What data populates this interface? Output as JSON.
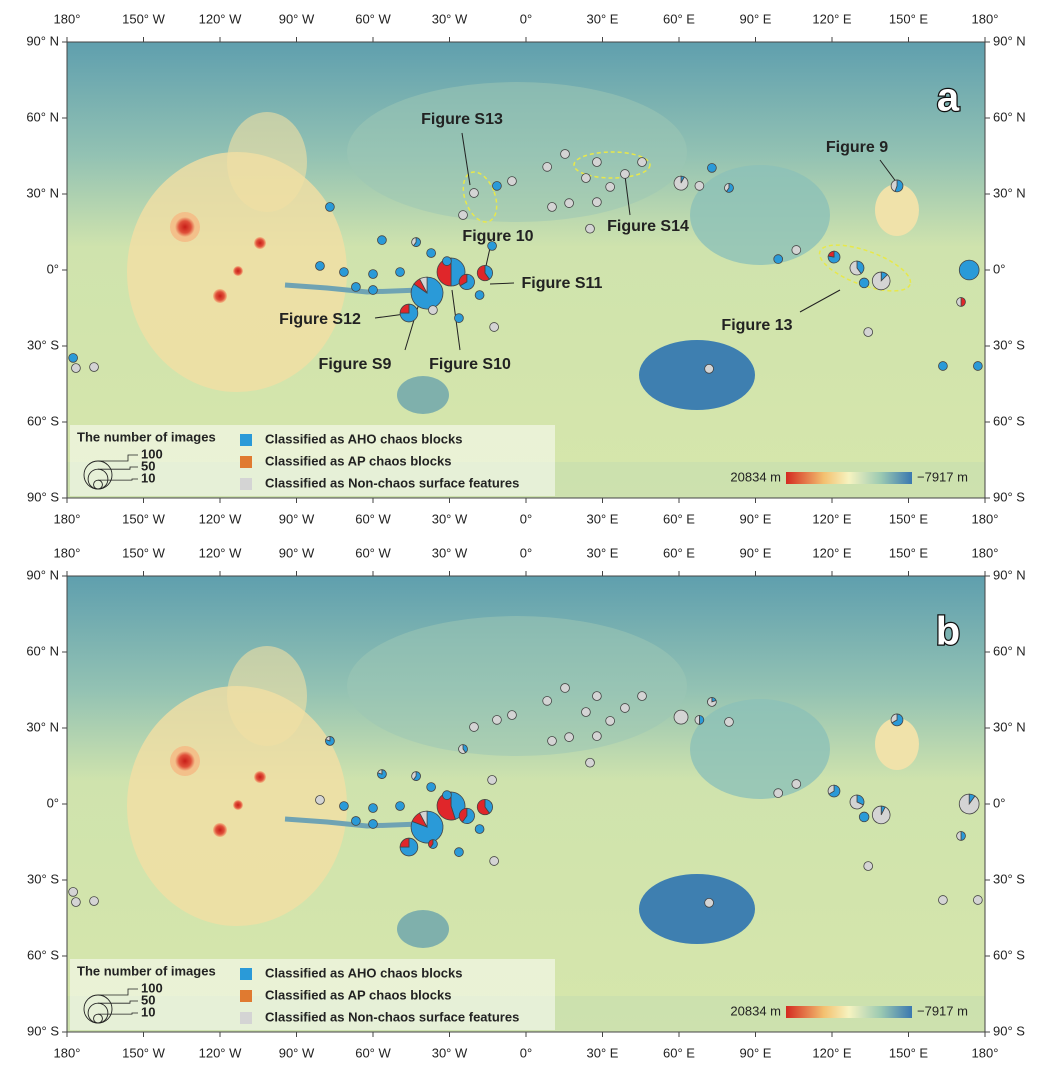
{
  "chart_data": {
    "type": "map",
    "xlim": [
      -180,
      180
    ],
    "ylim": [
      -90,
      90
    ],
    "xticks": [
      {
        "value": -180,
        "label": "180°"
      },
      {
        "value": -150,
        "label": "150° W"
      },
      {
        "value": -120,
        "label": "120° W"
      },
      {
        "value": -90,
        "label": "90° W"
      },
      {
        "value": -60,
        "label": "60° W"
      },
      {
        "value": -30,
        "label": "30° W"
      },
      {
        "value": 0,
        "label": "0°"
      },
      {
        "value": 30,
        "label": "30° E"
      },
      {
        "value": 60,
        "label": "60° E"
      },
      {
        "value": 90,
        "label": "90° E"
      },
      {
        "value": 120,
        "label": "120° E"
      },
      {
        "value": 150,
        "label": "150° E"
      },
      {
        "value": 180,
        "label": "180°"
      }
    ],
    "yticks": [
      {
        "value": 90,
        "label": "90° N"
      },
      {
        "value": 60,
        "label": "60° N"
      },
      {
        "value": 30,
        "label": "30° N"
      },
      {
        "value": 0,
        "label": "0°"
      },
      {
        "value": -30,
        "label": "30° S"
      },
      {
        "value": -60,
        "label": "60° S"
      },
      {
        "value": -90,
        "label": "90° S"
      }
    ],
    "panels": [
      {
        "label": "a",
        "annotations": [
          "Figure S13",
          "Figure 9",
          "Figure 10",
          "Figure S11",
          "Figure S14",
          "Figure 13",
          "Figure S12",
          "Figure S9",
          "Figure S10"
        ]
      },
      {
        "label": "b"
      }
    ],
    "size_title": "The number of images",
    "size_ticks": [
      100,
      50,
      10
    ],
    "classes": [
      {
        "name": "Classified as AHO chaos blocks",
        "color": "#2a9ad8"
      },
      {
        "name": "Classified as AP chaos blocks",
        "color": "#e0262a",
        "swatch": "#e07a30"
      },
      {
        "name": "Classified as Non-chaos surface features",
        "color": "#d4d4d4"
      }
    ],
    "colorbar": {
      "max": {
        "value": 20834,
        "label": "20834 m"
      },
      "min": {
        "value": -7917,
        "label": "−7917 m"
      }
    },
    "sites": [
      {
        "lon": -38.8,
        "lat": -9.1,
        "a": [
          110,
          10,
          10
        ],
        "b": [
          105,
          15,
          10
        ]
      },
      {
        "lon": -29.4,
        "lat": -0.8,
        "a": [
          50,
          50,
          0
        ],
        "b": [
          45,
          55,
          0
        ]
      },
      {
        "lon": -45.9,
        "lat": -17,
        "a": [
          30,
          10,
          0
        ],
        "b": [
          30,
          10,
          0
        ]
      },
      {
        "lon": -16.1,
        "lat": -1.2,
        "a": [
          12,
          18,
          0
        ],
        "b": [
          12,
          18,
          0
        ]
      },
      {
        "lon": -23.2,
        "lat": -4.7,
        "a": [
          20,
          10,
          0
        ],
        "b": [
          18,
          12,
          0
        ]
      },
      {
        "lon": 173.8,
        "lat": 0,
        "a": [
          50,
          0,
          0
        ],
        "b": [
          5,
          0,
          45
        ]
      },
      {
        "lon": 139.3,
        "lat": -4.3,
        "a": [
          5,
          0,
          35
        ],
        "b": [
          3,
          0,
          37
        ]
      },
      {
        "lon": 129.8,
        "lat": 0.8,
        "a": [
          10,
          0,
          15
        ],
        "b": [
          8,
          0,
          17
        ]
      },
      {
        "lon": 120.8,
        "lat": 5.1,
        "a": [
          14,
          4,
          0
        ],
        "b": [
          12,
          0,
          6
        ]
      },
      {
        "lon": 132.6,
        "lat": -5.1,
        "a": [
          12,
          0,
          0
        ],
        "b": [
          12,
          0,
          0
        ]
      },
      {
        "lon": 145.5,
        "lat": 33.2,
        "a": [
          10,
          0,
          8
        ],
        "b": [
          12,
          0,
          6
        ]
      },
      {
        "lon": 60.8,
        "lat": 34.3,
        "a": [
          2,
          0,
          23
        ],
        "b": [
          0,
          0,
          25
        ]
      },
      {
        "lon": 98.9,
        "lat": 4.3,
        "a": [
          10,
          0,
          0
        ],
        "b": [
          0,
          0,
          10
        ]
      },
      {
        "lon": 71.8,
        "lat": -39,
        "a": [
          0,
          0,
          10
        ],
        "b": [
          0,
          0,
          10
        ]
      },
      {
        "lon": 170.6,
        "lat": -12.6,
        "a": [
          0,
          5,
          5
        ],
        "b": [
          5,
          0,
          5
        ]
      },
      {
        "lon": 163.5,
        "lat": -37.9,
        "a": [
          10,
          0,
          0
        ],
        "b": [
          0,
          0,
          10
        ]
      },
      {
        "lon": 177.2,
        "lat": -37.9,
        "a": [
          10,
          0,
          0
        ],
        "b": [
          0,
          0,
          10
        ]
      },
      {
        "lon": -177.6,
        "lat": -34.7,
        "a": [
          10,
          0,
          0
        ],
        "b": [
          0,
          0,
          10
        ]
      },
      {
        "lon": -176.5,
        "lat": -38.7,
        "a": [
          0,
          0,
          10
        ],
        "b": [
          0,
          0,
          10
        ]
      },
      {
        "lon": -169.4,
        "lat": -38.3,
        "a": [
          0,
          0,
          10
        ],
        "b": [
          0,
          0,
          10
        ]
      },
      {
        "lon": -76.9,
        "lat": 24.9,
        "a": [
          10,
          0,
          0
        ],
        "b": [
          8,
          0,
          2
        ]
      },
      {
        "lon": -56.5,
        "lat": 11.8,
        "a": [
          10,
          0,
          0
        ],
        "b": [
          8,
          0,
          2
        ]
      },
      {
        "lon": -80.8,
        "lat": 1.6,
        "a": [
          10,
          0,
          0
        ],
        "b": [
          0,
          0,
          10
        ]
      },
      {
        "lon": -71.4,
        "lat": -0.8,
        "a": [
          10,
          0,
          0
        ],
        "b": [
          10,
          0,
          0
        ]
      },
      {
        "lon": -60,
        "lat": -1.6,
        "a": [
          10,
          0,
          0
        ],
        "b": [
          10,
          0,
          0
        ]
      },
      {
        "lon": -60,
        "lat": -7.9,
        "a": [
          10,
          0,
          0
        ],
        "b": [
          10,
          0,
          0
        ]
      },
      {
        "lon": -66.7,
        "lat": -6.7,
        "a": [
          10,
          0,
          0
        ],
        "b": [
          10,
          0,
          0
        ]
      },
      {
        "lon": -49.4,
        "lat": -0.8,
        "a": [
          10,
          0,
          0
        ],
        "b": [
          10,
          0,
          0
        ]
      },
      {
        "lon": -43.1,
        "lat": 11,
        "a": [
          6,
          0,
          4
        ],
        "b": [
          6,
          0,
          4
        ]
      },
      {
        "lon": -37.2,
        "lat": 6.7,
        "a": [
          10,
          0,
          0
        ],
        "b": [
          10,
          0,
          0
        ]
      },
      {
        "lon": -31,
        "lat": 3.5,
        "a": [
          10,
          0,
          0
        ],
        "b": [
          10,
          0,
          0
        ]
      },
      {
        "lon": -13.3,
        "lat": 9.5,
        "a": [
          10,
          0,
          0
        ],
        "b": [
          0,
          0,
          10
        ]
      },
      {
        "lon": -11.4,
        "lat": 33.2,
        "a": [
          10,
          0,
          0
        ],
        "b": [
          0,
          0,
          10
        ]
      },
      {
        "lon": -24.7,
        "lat": 21.7,
        "a": [
          0,
          0,
          10
        ],
        "b": [
          4,
          0,
          6
        ]
      },
      {
        "lon": -20.4,
        "lat": 30.4,
        "a": [
          0,
          0,
          10
        ],
        "b": [
          0,
          0,
          10
        ]
      },
      {
        "lon": -5.5,
        "lat": 35.1,
        "a": [
          0,
          0,
          10
        ],
        "b": [
          0,
          0,
          10
        ]
      },
      {
        "lon": 8.3,
        "lat": 40.7,
        "a": [
          0,
          0,
          10
        ],
        "b": [
          0,
          0,
          10
        ]
      },
      {
        "lon": 15.3,
        "lat": 45.8,
        "a": [
          0,
          0,
          10
        ],
        "b": [
          0,
          0,
          10
        ]
      },
      {
        "lon": 10.2,
        "lat": 24.9,
        "a": [
          0,
          0,
          10
        ],
        "b": [
          0,
          0,
          10
        ]
      },
      {
        "lon": 16.9,
        "lat": 26.4,
        "a": [
          0,
          0,
          10
        ],
        "b": [
          0,
          0,
          10
        ]
      },
      {
        "lon": 23.5,
        "lat": 36.3,
        "a": [
          0,
          0,
          10
        ],
        "b": [
          0,
          0,
          10
        ]
      },
      {
        "lon": 27.8,
        "lat": 42.6,
        "a": [
          0,
          0,
          10
        ],
        "b": [
          0,
          0,
          10
        ]
      },
      {
        "lon": 33,
        "lat": 32.8,
        "a": [
          0,
          0,
          10
        ],
        "b": [
          0,
          0,
          10
        ]
      },
      {
        "lon": 45.5,
        "lat": 42.6,
        "a": [
          0,
          0,
          10
        ],
        "b": [
          0,
          0,
          10
        ]
      },
      {
        "lon": 38.8,
        "lat": 37.9,
        "a": [
          0,
          0,
          10
        ],
        "b": [
          0,
          0,
          10
        ]
      },
      {
        "lon": 72.9,
        "lat": 40.3,
        "a": [
          10,
          0,
          0
        ],
        "b": [
          2,
          0,
          8
        ]
      },
      {
        "lon": 79.6,
        "lat": 32.4,
        "a": [
          6,
          0,
          4
        ],
        "b": [
          0,
          0,
          10
        ]
      },
      {
        "lon": 68,
        "lat": 33.2,
        "a": [
          0,
          0,
          10
        ],
        "b": [
          5,
          0,
          5
        ]
      },
      {
        "lon": -12.5,
        "lat": -22.5,
        "a": [
          0,
          0,
          10
        ],
        "b": [
          0,
          0,
          10
        ]
      },
      {
        "lon": 134.2,
        "lat": -24.5,
        "a": [
          0,
          0,
          10
        ],
        "b": [
          0,
          0,
          10
        ]
      },
      {
        "lon": 106,
        "lat": 7.9,
        "a": [
          0,
          0,
          10
        ],
        "b": [
          0,
          0,
          10
        ]
      },
      {
        "lon": 25.1,
        "lat": 16.3,
        "a": [
          0,
          0,
          10
        ],
        "b": [
          0,
          0,
          10
        ]
      },
      {
        "lon": 27.8,
        "lat": 26.8,
        "a": [
          0,
          0,
          10
        ],
        "b": [
          0,
          0,
          10
        ]
      },
      {
        "lon": -36.5,
        "lat": -15.8,
        "a": [
          0,
          0,
          10
        ],
        "b": [
          6,
          4,
          0
        ]
      },
      {
        "lon": -26.3,
        "lat": -19,
        "a": [
          10,
          0,
          0
        ],
        "b": [
          10,
          0,
          0
        ]
      },
      {
        "lon": -18.2,
        "lat": -9.9,
        "a": [
          10,
          0,
          0
        ],
        "b": [
          10,
          0,
          0
        ]
      }
    ]
  }
}
